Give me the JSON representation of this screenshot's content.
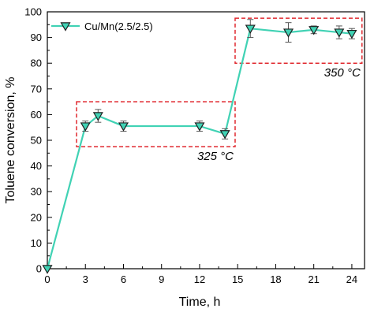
{
  "chart_data": {
    "type": "line",
    "title": "",
    "xlabel": "Time, h",
    "ylabel": "Toluene conversion, %",
    "xlim": [
      0,
      25
    ],
    "ylim": [
      0,
      100
    ],
    "xticks": [
      0,
      3,
      6,
      9,
      12,
      15,
      18,
      21,
      24
    ],
    "yticks": [
      0,
      10,
      20,
      30,
      40,
      50,
      60,
      70,
      80,
      90,
      100
    ],
    "grid": false,
    "legend_position": "top-left",
    "colors": {
      "line": "#40d2b4",
      "marker_fill": "#40d2b4",
      "marker_edge": "#1f1f1f",
      "error_bar": "#555555",
      "annotation_box": "#e0282e"
    },
    "series": [
      {
        "name": "Cu/Mn(2.5/2.5)",
        "x": [
          0,
          3,
          4,
          6,
          12,
          14,
          16,
          19,
          21,
          23,
          24
        ],
        "y": [
          0,
          55.5,
          59.5,
          55.5,
          55.5,
          52.5,
          93.5,
          92.0,
          93.0,
          92.0,
          91.5
        ],
        "error": [
          0,
          2.0,
          2.5,
          2.0,
          2.0,
          2.0,
          3.5,
          3.8,
          1.5,
          2.5,
          2.0
        ]
      }
    ],
    "annotations": [
      {
        "text": "325 °C",
        "box_x": [
          2.3,
          14.8
        ],
        "box_y": [
          47.5,
          65.0
        ]
      },
      {
        "text": "350 °C",
        "box_x": [
          14.8,
          24.8
        ],
        "box_y": [
          80.0,
          97.5
        ]
      }
    ]
  }
}
